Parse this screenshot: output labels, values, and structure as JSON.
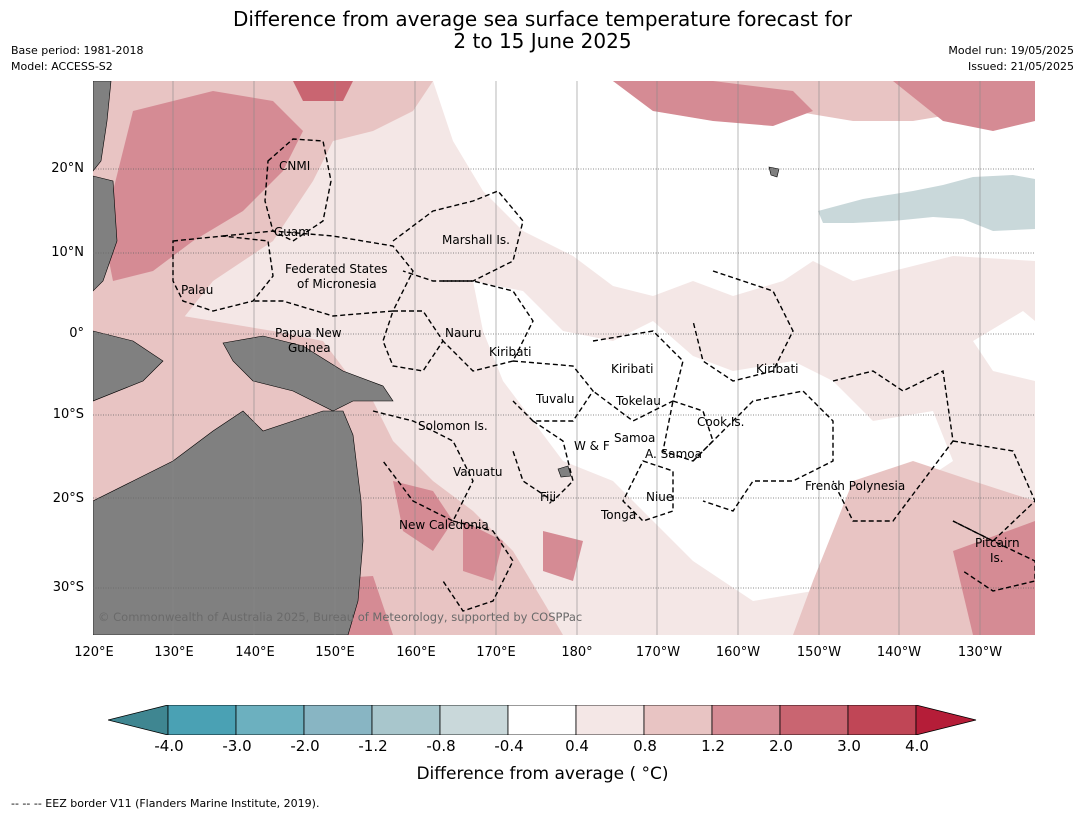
{
  "title_line1": "Difference from average sea surface temperature forecast for",
  "title_line2": "2 to 15 June 2025",
  "base_period": "Base period: 1981-2018",
  "model": "Model: ACCESS-S2",
  "model_run": "Model run: 19/05/2025",
  "issued": "Issued: 21/05/2025",
  "copyright": "© Commonwealth of Australia 2025, Bureau of Meteorology, supported by COSPPac",
  "footer": "--  --  -- EEZ border V11 (Flanders Marine Institute, 2019).",
  "lat_labels": [
    "20°N",
    "10°N",
    "0°",
    "10°S",
    "20°S",
    "30°S"
  ],
  "lon_labels": [
    "120°E",
    "130°E",
    "140°E",
    "150°E",
    "160°E",
    "170°E",
    "180°",
    "170°W",
    "160°W",
    "150°W",
    "140°W",
    "130°W"
  ],
  "region_labels": [
    "CNMI",
    "Guam",
    "Marshall Is.",
    "Federated States",
    "of Micronesia",
    "Palau",
    "Papua New",
    "Guinea",
    "Nauru",
    "Kiribati",
    "Kiribati",
    "Kiribati",
    "Tuvalu",
    "Tokelau",
    "Solomon Is.",
    "Cook Is.",
    "Samoa",
    "W & F",
    "A. Samoa",
    "Vanuatu",
    "Fiji",
    "Niue",
    "French Polynesia",
    "Tonga",
    "New Caledonia",
    "Pitcairn",
    "Is."
  ],
  "colorbar": {
    "label": "Difference from average ( °C)",
    "ticks": [
      "-4.0",
      "-3.0",
      "-2.0",
      "-1.2",
      "-0.8",
      "-0.4",
      "0.4",
      "0.8",
      "1.2",
      "2.0",
      "3.0",
      "4.0"
    ],
    "colors": [
      "#3f8691",
      "#4aa1b4",
      "#6cb0bf",
      "#88b5c3",
      "#a8c6cc",
      "#c9d8da",
      "#ffffff",
      "#f4e7e6",
      "#e8c4c3",
      "#d58b94",
      "#c96571",
      "#c04656",
      "#b51d38"
    ]
  }
}
